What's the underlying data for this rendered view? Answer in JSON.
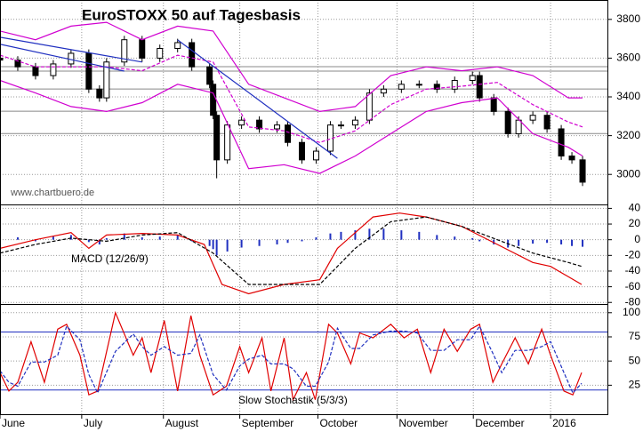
{
  "chart_data": [
    {
      "type": "candlestick",
      "title": "EuroSTOXX 50 auf Tagesbasis",
      "annotation": "www.chartbuero.de",
      "xlim": [
        0,
        171
      ],
      "ylim": [
        2845,
        3900
      ],
      "yticks": [
        3000,
        3200,
        3400,
        3600,
        3800
      ],
      "grid": true,
      "up_color": "#ffffff",
      "down_color": "#000000",
      "x": [
        0,
        5,
        10,
        15,
        20,
        25,
        28,
        30,
        35,
        40,
        45,
        50,
        54,
        59,
        60,
        61,
        64,
        68,
        73,
        78,
        81,
        85,
        89,
        93,
        96,
        100,
        104,
        108,
        113,
        118,
        123,
        128,
        133,
        135,
        139,
        143,
        146,
        150,
        154,
        158,
        161,
        164
      ],
      "open": [
        3600,
        3590,
        3555,
        3510,
        3570,
        3625,
        3440,
        3395,
        3580,
        3695,
        3600,
        3650,
        3680,
        3555,
        3465,
        3305,
        3075,
        3255,
        3280,
        3235,
        3255,
        3165,
        3075,
        3120,
        3255,
        3255,
        3280,
        3420,
        3440,
        3465,
        3465,
        3440,
        3485,
        3510,
        3395,
        3325,
        3210,
        3280,
        3305,
        3235,
        3095,
        3075
      ],
      "high": [
        3620,
        3610,
        3575,
        3590,
        3645,
        3645,
        3460,
        3600,
        3715,
        3715,
        3670,
        3700,
        3700,
        3575,
        3485,
        3325,
        3275,
        3300,
        3300,
        3275,
        3275,
        3185,
        3140,
        3275,
        3275,
        3300,
        3440,
        3460,
        3485,
        3485,
        3485,
        3505,
        3530,
        3530,
        3415,
        3345,
        3300,
        3325,
        3325,
        3255,
        3115,
        3095
      ],
      "low": [
        3570,
        3535,
        3490,
        3490,
        3550,
        3420,
        3375,
        3375,
        3560,
        3580,
        3580,
        3630,
        3535,
        3445,
        3285,
        2980,
        3055,
        3235,
        3215,
        3215,
        3145,
        3055,
        3055,
        3100,
        3235,
        3235,
        3260,
        3400,
        3420,
        3445,
        3420,
        3420,
        3465,
        3375,
        3305,
        3190,
        3190,
        3260,
        3215,
        3075,
        3055,
        2940
      ],
      "close": [
        3590,
        3555,
        3510,
        3570,
        3625,
        3440,
        3395,
        3580,
        3695,
        3600,
        3650,
        3680,
        3555,
        3465,
        3305,
        3075,
        3255,
        3280,
        3235,
        3255,
        3165,
        3075,
        3120,
        3255,
        3255,
        3280,
        3420,
        3440,
        3465,
        3465,
        3440,
        3485,
        3510,
        3395,
        3325,
        3210,
        3280,
        3305,
        3235,
        3095,
        3075,
        2960
      ],
      "lines": [
        {
          "color": "#d000d0",
          "dashed": false,
          "x": [
            0,
            10,
            20,
            30,
            40,
            50,
            60,
            70,
            80,
            90,
            100,
            110,
            120,
            130,
            140,
            150,
            160,
            164
          ],
          "values": [
            3740,
            3695,
            3765,
            3785,
            3695,
            3765,
            3740,
            3465,
            3395,
            3325,
            3350,
            3510,
            3555,
            3535,
            3555,
            3510,
            3395,
            3395
          ]
        },
        {
          "color": "#d000d0",
          "dashed": true,
          "x": [
            0,
            10,
            20,
            30,
            40,
            50,
            60,
            70,
            80,
            90,
            100,
            110,
            120,
            130,
            140,
            150,
            160,
            164
          ],
          "values": [
            3615,
            3555,
            3555,
            3555,
            3535,
            3615,
            3580,
            3245,
            3225,
            3165,
            3225,
            3360,
            3440,
            3455,
            3475,
            3360,
            3270,
            3245
          ]
        },
        {
          "color": "#d000d0",
          "dashed": false,
          "x": [
            0,
            10,
            20,
            30,
            40,
            50,
            60,
            70,
            80,
            90,
            100,
            110,
            120,
            130,
            140,
            150,
            160,
            164
          ],
          "values": [
            3485,
            3420,
            3350,
            3325,
            3370,
            3465,
            3420,
            3030,
            3050,
            3005,
            3095,
            3210,
            3325,
            3370,
            3395,
            3210,
            3140,
            3095
          ]
        },
        {
          "color": "#2030c0",
          "dashed": false,
          "x": [
            0,
            40
          ],
          "values": [
            3708,
            3580
          ]
        },
        {
          "color": "#2030c0",
          "dashed": false,
          "x": [
            0,
            35
          ],
          "values": [
            3672,
            3533
          ]
        },
        {
          "color": "#2030c0",
          "dashed": false,
          "x": [
            50,
            95
          ],
          "values": [
            3694,
            3083
          ]
        }
      ],
      "levels": [
        3556,
        3533,
        3441,
        3326,
        3211
      ],
      "level_color": "#888888"
    },
    {
      "type": "macd",
      "label": "MACD (12/26/9)",
      "xlim": [
        0,
        171
      ],
      "ylim": [
        -82,
        45
      ],
      "yticks": [
        40,
        20,
        0,
        -20,
        -40,
        -60,
        -80
      ],
      "grid": true,
      "hist_color": "#2030c0",
      "x": [
        0,
        5,
        10,
        15,
        20,
        25,
        28,
        30,
        35,
        40,
        45,
        50,
        54,
        59,
        60,
        61,
        64,
        68,
        73,
        78,
        81,
        85,
        89,
        93,
        96,
        100,
        104,
        108,
        113,
        118,
        123,
        128,
        133,
        135,
        139,
        143,
        146,
        150,
        154,
        158,
        161,
        164
      ],
      "histogram": [
        5,
        3,
        -2,
        4,
        6,
        -3,
        -6,
        2,
        8,
        3,
        4,
        6,
        -2,
        -8,
        -12,
        -20,
        -15,
        -10,
        -8,
        -6,
        -4,
        -2,
        3,
        8,
        10,
        12,
        14,
        14,
        12,
        10,
        6,
        4,
        2,
        -2,
        -6,
        -10,
        -8,
        -5,
        -4,
        -6,
        -8,
        -9
      ],
      "lines": [
        {
          "color": "#e00000",
          "dashed": false,
          "x": [
            0,
            10,
            20,
            25,
            30,
            40,
            50,
            57.5,
            62.5,
            70,
            80,
            90,
            95,
            105,
            112.5,
            120,
            130,
            140,
            150,
            155,
            163.75
          ],
          "values": [
            -11,
            0,
            9,
            -11,
            6,
            8,
            6,
            -6,
            -57,
            -69,
            -57,
            -51,
            -11,
            29,
            34,
            29,
            17,
            -6,
            -29,
            -34,
            -57
          ]
        },
        {
          "color": "#000000",
          "dashed": true,
          "x": [
            0,
            10,
            20,
            30,
            40,
            50,
            60,
            70,
            80,
            90,
            100,
            110,
            120,
            130,
            140,
            150,
            160,
            163.75
          ],
          "values": [
            -17,
            -6,
            2,
            -2,
            6,
            9,
            -17,
            -57,
            -57,
            -57,
            -11,
            23,
            29,
            17,
            0,
            -17,
            -29,
            -34
          ]
        }
      ]
    },
    {
      "type": "stochastic",
      "label": "Slow Stochastik (5/3/3)",
      "xlim": [
        0,
        171
      ],
      "ylim": [
        -5,
        109
      ],
      "yticks": [
        25,
        50,
        75,
        100
      ],
      "grid": true,
      "levels": [
        20,
        80
      ],
      "level_color": "#2030c0",
      "xticks": [
        {
          "value": 0,
          "label": "June"
        },
        {
          "value": 23,
          "label": "July"
        },
        {
          "value": 46,
          "label": "August"
        },
        {
          "value": 67.5,
          "label": "September"
        },
        {
          "value": 89.5,
          "label": "October"
        },
        {
          "value": 111.75,
          "label": "November"
        },
        {
          "value": 133.25,
          "label": "December"
        },
        {
          "value": 155,
          "label": "2016"
        }
      ],
      "lines": [
        {
          "color": "#e00000",
          "dashed": false,
          "x": [
            0,
            2.5,
            5,
            8.75,
            12.5,
            16.25,
            18.75,
            22.5,
            25,
            27.5,
            32.5,
            37.5,
            40,
            42.5,
            46.25,
            50,
            53.75,
            56.25,
            60,
            63.75,
            67.5,
            70,
            73.75,
            76.25,
            80,
            82.5,
            86.25,
            88.75,
            92.5,
            95,
            98.75,
            101.25,
            105,
            110,
            113.75,
            117.5,
            121.25,
            125,
            128.75,
            132.5,
            135,
            138.75,
            141.25,
            145,
            148.75,
            152.5,
            155,
            158.75,
            161.25,
            163.75
          ],
          "values": [
            38,
            19,
            28,
            70,
            28,
            83,
            88,
            56,
            15,
            19,
            100,
            56,
            74,
            38,
            92,
            19,
            97,
            56,
            15,
            24,
            65,
            38,
            74,
            19,
            74,
            10,
            38,
            10,
            88,
            79,
            47,
            79,
            74,
            88,
            74,
            83,
            38,
            83,
            60,
            83,
            88,
            28,
            47,
            74,
            47,
            83,
            56,
            19,
            15,
            38
          ]
        },
        {
          "color": "#2030c0",
          "dashed": true,
          "x": [
            0,
            2.5,
            5,
            8.75,
            12.5,
            16.25,
            18.75,
            22.5,
            25,
            27.5,
            32.5,
            37.5,
            40,
            42.5,
            46.25,
            50,
            53.75,
            56.25,
            60,
            63.75,
            67.5,
            70,
            73.75,
            76.25,
            80,
            82.5,
            86.25,
            88.75,
            92.5,
            95,
            98.75,
            101.25,
            105,
            110,
            113.75,
            117.5,
            121.25,
            125,
            128.75,
            132.5,
            135,
            138.75,
            141.25,
            145,
            148.75,
            152.5,
            155,
            158.75,
            161.25,
            163.75
          ],
          "values": [
            40,
            28,
            24,
            49,
            49,
            56,
            86,
            72,
            36,
            17,
            60,
            78,
            65,
            56,
            65,
            56,
            58,
            77,
            36,
            20,
            45,
            52,
            56,
            47,
            47,
            42,
            24,
            24,
            49,
            84,
            63,
            63,
            77,
            81,
            81,
            79,
            61,
            61,
            72,
            72,
            86,
            58,
            38,
            61,
            61,
            65,
            70,
            38,
            17,
            27
          ]
        }
      ]
    }
  ]
}
